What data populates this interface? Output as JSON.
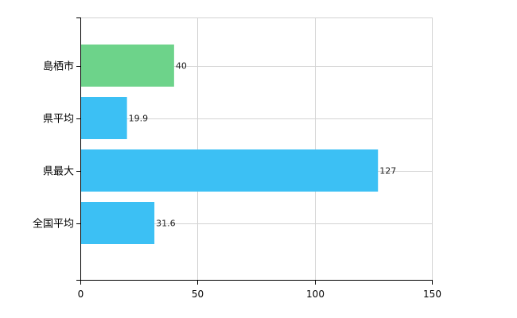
{
  "chart_data": {
    "type": "bar",
    "orientation": "horizontal",
    "categories": [
      "島栖市",
      "県平均",
      "県最大",
      "全国平均"
    ],
    "values": [
      40,
      19.9,
      127,
      31.6
    ],
    "value_labels": [
      "40",
      "19.9",
      "127",
      "31.6"
    ],
    "colors": [
      "#6dd38a",
      "#3cc0f4",
      "#3cc0f4",
      "#3cc0f4"
    ],
    "xlim": [
      0,
      150
    ],
    "xticks": [
      0,
      50,
      100,
      150
    ],
    "x_tick_labels": [
      "0",
      "50",
      "100",
      "150"
    ],
    "grid": true,
    "legend": false
  }
}
